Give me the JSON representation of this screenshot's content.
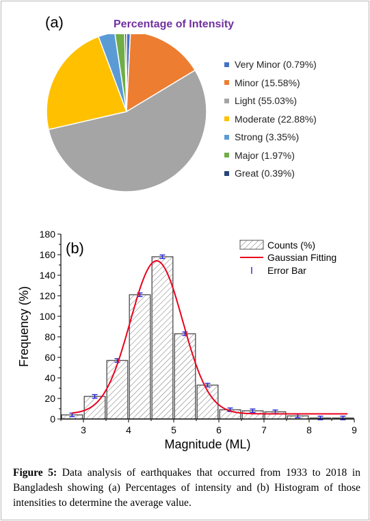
{
  "chart_data": [
    {
      "type": "pie",
      "panel_label": "(a)",
      "title": "Percentage of Intensity",
      "slices": [
        {
          "label": "Very Minor (0.79%)",
          "value": 0.79,
          "color": "#4472c4"
        },
        {
          "label": "Minor (15.58%)",
          "value": 15.58,
          "color": "#ed7d31"
        },
        {
          "label": "Light (55.03%)",
          "value": 55.03,
          "color": "#a5a5a5"
        },
        {
          "label": "Moderate (22.88%)",
          "value": 22.88,
          "color": "#ffc000"
        },
        {
          "label": "Strong (3.35%)",
          "value": 3.35,
          "color": "#5b9bd5"
        },
        {
          "label": "Major (1.97%)",
          "value": 1.97,
          "color": "#70ad47"
        },
        {
          "label": "Great (0.39%)",
          "value": 0.39,
          "color": "#264478"
        }
      ]
    },
    {
      "type": "bar",
      "panel_label": "(b)",
      "xlabel": "Magnitude (ML)",
      "ylabel": "Frequency (%)",
      "xlim": [
        2.5,
        9
      ],
      "ylim": [
        0,
        180
      ],
      "xticks": [
        "3",
        "4",
        "5",
        "6",
        "7",
        "8",
        "9"
      ],
      "yticks": [
        "0",
        "20",
        "40",
        "60",
        "80",
        "100",
        "120",
        "140",
        "160",
        "180"
      ],
      "bin_width": 0.5,
      "bin_centers": [
        2.75,
        3.25,
        3.75,
        4.25,
        4.75,
        5.25,
        5.75,
        6.25,
        6.75,
        7.25,
        7.75,
        8.25,
        8.75
      ],
      "counts": [
        4,
        22,
        57,
        121,
        158,
        83,
        33,
        9,
        8,
        7,
        3,
        1,
        1
      ],
      "gaussian_fit": {
        "baseline": 5,
        "center": 4.62,
        "sigma": 0.58,
        "peak": 154
      },
      "legend": {
        "counts_label": "Counts (%)",
        "fit_label": "Gaussian Fitting",
        "error_label": "Error Bar",
        "error_symbol": "I"
      },
      "colors": {
        "fit": "#e8001c",
        "error": "#1f1fd6",
        "bar_hatch": "#6d6d6d"
      }
    }
  ],
  "caption": {
    "label": "Figure 5:",
    "text": " Data analysis of earthquakes that occurred from 1933 to 2018 in Bangladesh showing (a) Percentages of intensity and (b) Histogram of those intensities to determine the average value."
  }
}
